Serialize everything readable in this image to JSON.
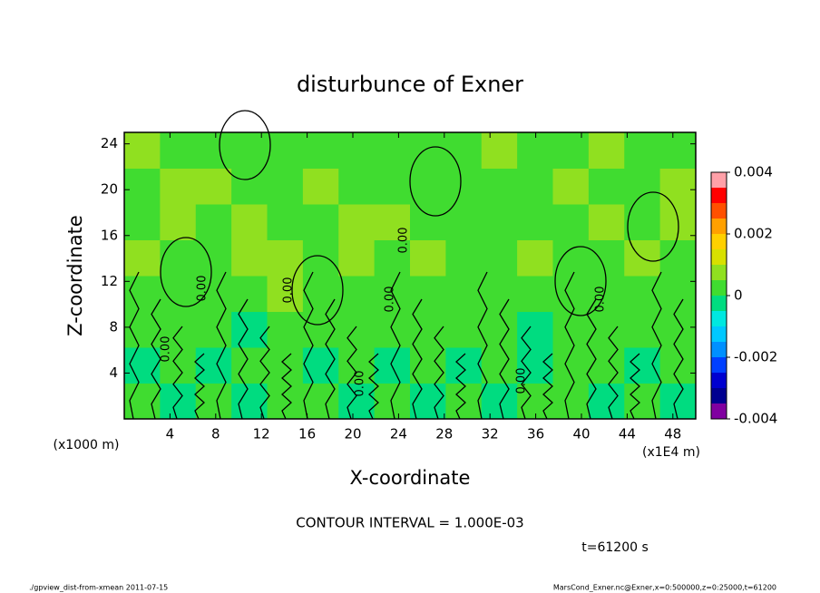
{
  "chart_data": {
    "type": "contour",
    "title": "disturbunce of Exner",
    "x_label": "X-coordinate",
    "y_label": "Z-coordinate",
    "x_unit": "(x1E4 m)",
    "y_unit": "(x1000 m)",
    "xlim": [
      0,
      50
    ],
    "ylim": [
      0,
      25
    ],
    "xticks": [
      4,
      8,
      12,
      16,
      20,
      24,
      28,
      32,
      36,
      40,
      44,
      48
    ],
    "yticks": [
      4,
      8,
      12,
      16,
      20,
      24
    ],
    "z": [
      [
        0.0002,
        -0.0002,
        0.0002,
        -0.0002,
        0.0002,
        0.0002,
        -0.0002,
        0.0002,
        -0.0002,
        0.0002,
        -0.0002,
        0.0002,
        0.0002,
        -0.0002,
        0.0002,
        -0.0002
      ],
      [
        -0.0002,
        0.0002,
        -0.0002,
        0.0002,
        0.0002,
        -0.0002,
        0.0002,
        -0.0002,
        0.0002,
        -0.0002,
        0.0002,
        -0.0002,
        0.0002,
        0.0002,
        -0.0002,
        0.0002
      ],
      [
        0.0002,
        0.0002,
        0.0002,
        -0.0002,
        0.0002,
        0.0002,
        0.0002,
        0.0002,
        0.0002,
        0.0002,
        0.0002,
        -0.0002,
        0.0002,
        0.0002,
        0.0002,
        0.0002
      ],
      [
        0.0002,
        0.0002,
        0.0002,
        0.0002,
        0.0007,
        0.0002,
        0.0002,
        0.0002,
        0.0002,
        0.0002,
        0.0002,
        0.0002,
        0.0002,
        0.0002,
        0.0002,
        0.0002
      ],
      [
        0.0007,
        0.0002,
        0.0002,
        0.0007,
        0.0007,
        0.0002,
        0.0007,
        0.0002,
        0.0007,
        0.0002,
        0.0002,
        0.0007,
        0.0002,
        0.0002,
        0.0007,
        0.0002
      ],
      [
        0.0002,
        0.0007,
        0.0002,
        0.0007,
        0.0002,
        0.0002,
        0.0007,
        0.0007,
        0.0002,
        0.0002,
        0.0002,
        0.0002,
        0.0002,
        0.0007,
        0.0002,
        0.0007
      ],
      [
        0.0002,
        0.0007,
        0.0007,
        0.0002,
        0.0002,
        0.0007,
        0.0002,
        0.0002,
        0.0002,
        0.0002,
        0.0002,
        0.0002,
        0.0007,
        0.0002,
        0.0002,
        0.0007
      ],
      [
        0.0007,
        0.0002,
        0.0002,
        0.0002,
        0.0002,
        0.0002,
        0.0002,
        0.0002,
        0.0002,
        0.0002,
        0.0007,
        0.0002,
        0.0002,
        0.0007,
        0.0002,
        0.0002
      ]
    ],
    "colorbar": {
      "levels": [
        -0.004,
        -0.0035,
        -0.003,
        -0.0025,
        -0.002,
        -0.0015,
        -0.001,
        -0.0005,
        0,
        0.0005,
        0.001,
        0.0015,
        0.002,
        0.0025,
        0.003,
        0.0035,
        0.004
      ],
      "colors": [
        "#8000a0",
        "#000090",
        "#0000d0",
        "#0040ff",
        "#0090ff",
        "#00c8ff",
        "#00e8e0",
        "#00dc80",
        "#40dc30",
        "#90e020",
        "#d8e000",
        "#ffd000",
        "#ffa000",
        "#ff5000",
        "#ff0000",
        "#ffa0a8"
      ],
      "ticks": [
        -0.004,
        -0.002,
        0,
        0.002,
        0.004
      ]
    },
    "contour_labels": [
      "0.00",
      "0.00",
      "0.00",
      "0.00",
      "0.00",
      "0.00",
      "0.00",
      "0.00"
    ],
    "contour_interval": "CONTOUR INTERVAL = 1.000E-03",
    "time": "t=61200 s",
    "footer_left": "./gpview_dist-from-xmean  2011-07-15",
    "footer_right": "MarsCond_Exner.nc@Exner,x=0:500000,z=0:25000,t=61200"
  }
}
